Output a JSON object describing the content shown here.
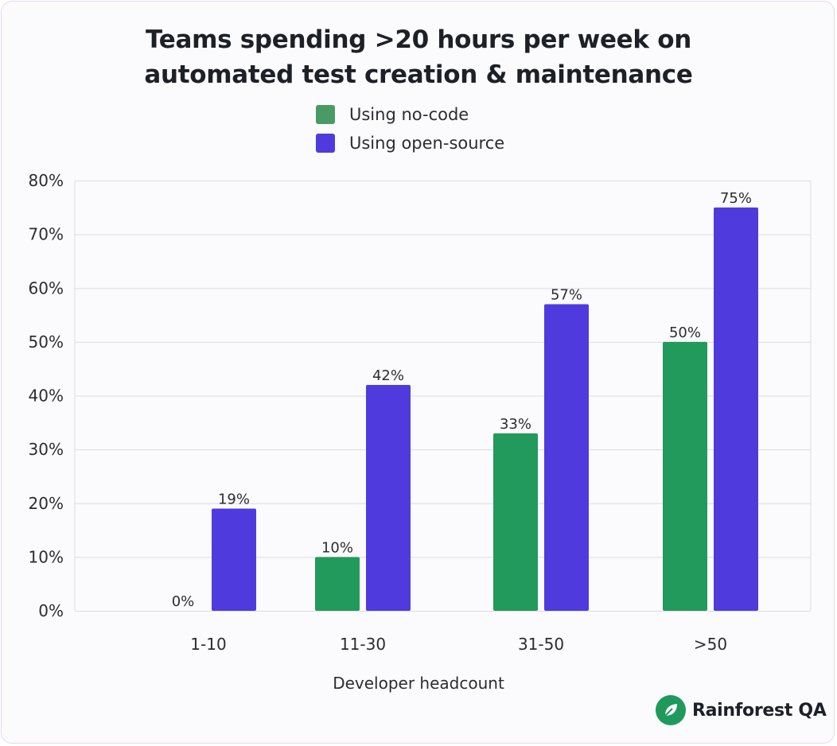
{
  "chart_data": {
    "type": "bar",
    "title": [
      "Teams spending >20 hours per week on",
      "automated test creation & maintenance"
    ],
    "xlabel": "Developer headcount",
    "ylabel": "",
    "categories": [
      "1-10",
      "11-30",
      "31-50",
      ">50"
    ],
    "series": [
      {
        "name": "Using no-code",
        "color": "#229a5c",
        "swatch_color": "#4a9a63",
        "values": [
          0,
          10,
          33,
          50
        ],
        "labels": [
          "0%",
          "10%",
          "33%",
          "50%"
        ]
      },
      {
        "name": "Using open-source",
        "color": "#4f3bdd",
        "swatch_color": "#4f3bdd",
        "values": [
          19,
          42,
          57,
          75
        ],
        "labels": [
          "19%",
          "42%",
          "57%",
          "75%"
        ]
      }
    ],
    "ylim": [
      0,
      80
    ],
    "yticks": [
      0,
      10,
      20,
      30,
      40,
      50,
      60,
      70,
      80
    ],
    "ytick_labels": [
      "0%",
      "10%",
      "20%",
      "30%",
      "40%",
      "50%",
      "60%",
      "70%",
      "80%"
    ],
    "grid": true,
    "legend": "top-center"
  },
  "brand": {
    "name": "Rainforest QA",
    "icon": "leaf-icon",
    "color": "#1f9a5c"
  }
}
